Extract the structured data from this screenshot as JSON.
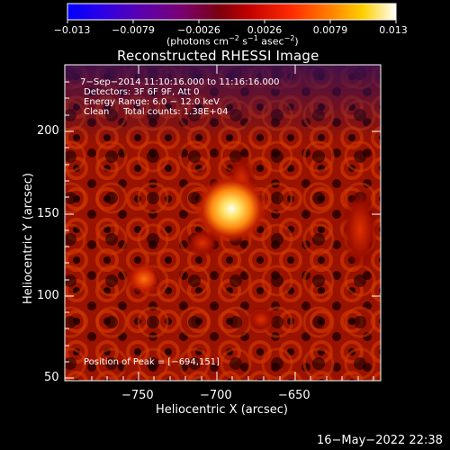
{
  "colorbar": {
    "tick_labels": [
      "−0.013",
      "−0.0079",
      "−0.0026",
      "0.0026",
      "0.0079",
      "0.013"
    ],
    "units_base": "(photons cm",
    "units_exp1": "−2",
    "units_mid": " s",
    "units_exp2": "−1",
    "units_mid2": " asec",
    "units_exp3": "−2",
    "units_end": ")"
  },
  "plot": {
    "title": "Reconstructed RHESSI Image",
    "info_line1": " 7−Sep−2014 11:10:16.000 to 11:16:16.000",
    "info_line2": "Detectors: 3F 6F 9F, Att 0",
    "info_line3": "Energy Range: 6.0 − 12.0 keV",
    "info_line4": "Clean     Total counts: 1.38E+04",
    "peak_label": "Position of Peak = [−694,151]",
    "xlabel": "Heliocentric X (arcsec)",
    "ylabel": "Heliocentric Y (arcsec)",
    "x_ticks": [
      "−750",
      "−700",
      "−650"
    ],
    "y_ticks": [
      "200",
      "150",
      "100",
      "50"
    ],
    "x_range": [
      -794,
      -600
    ],
    "y_range": [
      47,
      240
    ]
  },
  "timestamp": "16−May−2022 22:38"
}
